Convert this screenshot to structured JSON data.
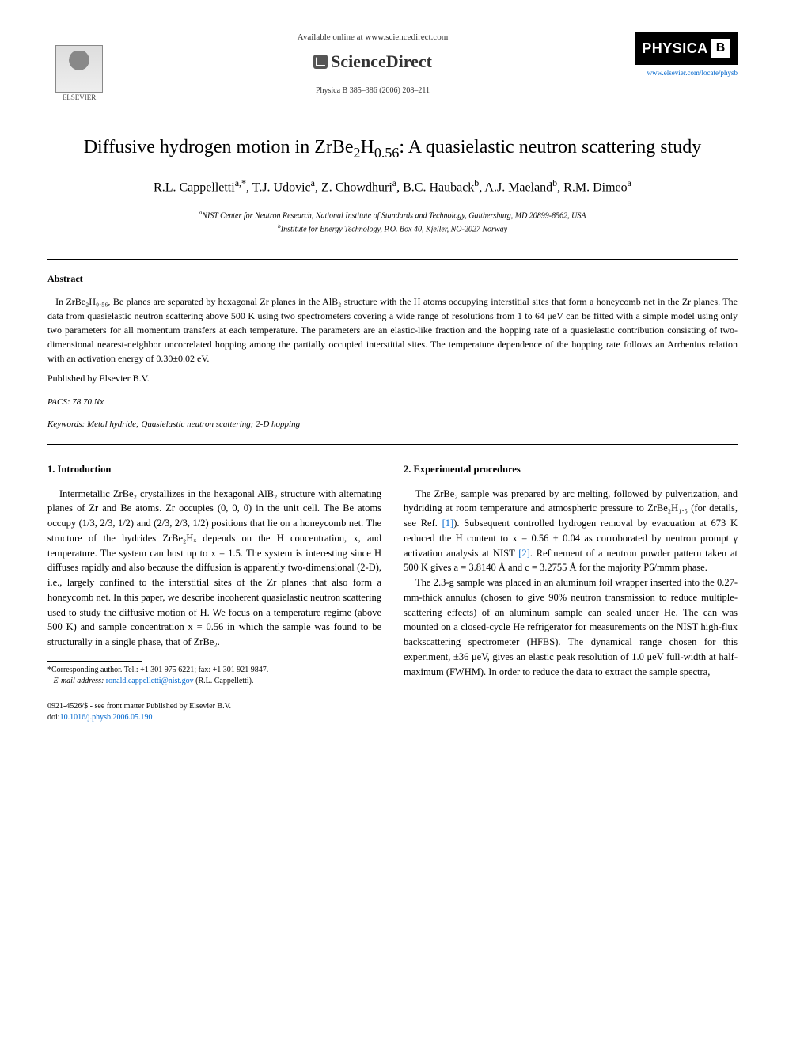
{
  "header": {
    "available_online": "Available online at www.sciencedirect.com",
    "sciencedirect": "ScienceDirect",
    "journal_ref": "Physica B 385–386 (2006) 208–211",
    "elsevier_label": "ELSEVIER",
    "physica_label": "PHYSICA",
    "physica_b": "B",
    "locate_link": "www.elsevier.com/locate/physb"
  },
  "title_line1": "Diffusive hydrogen motion in ZrBe",
  "title_sub1": "2",
  "title_mid": "H",
  "title_sub2": "0.56",
  "title_line2": ": A quasielastic neutron scattering study",
  "authors_html": "R.L. Cappelletti<sup>a,*</sup>, T.J. Udovic<sup>a</sup>, Z. Chowdhuri<sup>a</sup>, B.C. Hauback<sup>b</sup>, A.J. Maeland<sup>b</sup>, R.M. Dimeo<sup>a</sup>",
  "affiliations": {
    "a": "NIST Center for Neutron Research, National Institute of Standards and Technology, Gaithersburg, MD 20899-8562, USA",
    "b": "Institute for Energy Technology, P.O. Box 40, Kjeller, NO-2027 Norway"
  },
  "abstract": {
    "heading": "Abstract",
    "text": "In ZrBe₂H₀.₅₆, Be planes are separated by hexagonal Zr planes in the AlB₂ structure with the H atoms occupying interstitial sites that form a honeycomb net in the Zr planes. The data from quasielastic neutron scattering above 500 K using two spectrometers covering a wide range of resolutions from 1 to 64 μeV can be fitted with a simple model using only two parameters for all momentum transfers at each temperature. The parameters are an elastic-like fraction and the hopping rate of a quasielastic contribution consisting of two-dimensional nearest-neighbor uncorrelated hopping among the partially occupied interstitial sites. The temperature dependence of the hopping rate follows an Arrhenius relation with an activation energy of 0.30±0.02 eV.",
    "published": "Published by Elsevier B.V."
  },
  "pacs": {
    "label": "PACS:",
    "value": "78.70.Nx"
  },
  "keywords": {
    "label": "Keywords:",
    "value": "Metal hydride; Quasielastic neutron scattering; 2-D hopping"
  },
  "section1": {
    "heading": "1. Introduction",
    "p1": "Intermetallic ZrBe₂ crystallizes in the hexagonal AlB₂ structure with alternating planes of Zr and Be atoms. Zr occupies (0, 0, 0) in the unit cell. The Be atoms occupy (1/3, 2/3, 1/2) and (2/3, 2/3, 1/2) positions that lie on a honeycomb net. The structure of the hydrides ZrBe₂Hₓ depends on the H concentration, x, and temperature. The system can host up to x = 1.5. The system is interesting since H diffuses rapidly and also because the diffusion is apparently two-dimensional (2-D), i.e., largely confined to the interstitial sites of the Zr planes that also form a honeycomb net. In this paper, we describe incoherent quasielastic neutron scattering used to study the diffusive motion of H. We focus on a temperature regime (above 500 K) and sample concentration x = 0.56 in which the sample was found to be structurally in a single phase, that of ZrBe₂."
  },
  "section2": {
    "heading": "2. Experimental procedures",
    "p1": "The ZrBe₂ sample was prepared by arc melting, followed by pulverization, and hydriding at room temperature and atmospheric pressure to ZrBe₂H₁.₅ (for details, see Ref. [1]). Subsequent controlled hydrogen removal by evacuation at 673 K reduced the H content to x = 0.56 ± 0.04 as corroborated by neutron prompt γ activation analysis at NIST [2]. Refinement of a neutron powder pattern taken at 500 K gives a = 3.8140 Å and c = 3.2755 Å for the majority P6/mmm phase.",
    "p2": "The 2.3-g sample was placed in an aluminum foil wrapper inserted into the 0.27-mm-thick annulus (chosen to give 90% neutron transmission to reduce multiple-scattering effects) of an aluminum sample can sealed under He. The can was mounted on a closed-cycle He refrigerator for measurements on the NIST high-flux backscattering spectrometer (HFBS). The dynamical range chosen for this experiment, ±36 μeV, gives an elastic peak resolution of 1.0 μeV full-width at half-maximum (FWHM). In order to reduce the data to extract the sample spectra,"
  },
  "footnote": {
    "corresponding": "*Corresponding author. Tel.: +1 301 975 6221; fax: +1 301 921 9847.",
    "email_label": "E-mail address:",
    "email": "ronald.cappelletti@nist.gov",
    "email_name": "(R.L. Cappelletti)."
  },
  "footer": {
    "copyright": "0921-4526/$ - see front matter Published by Elsevier B.V.",
    "doi_label": "doi:",
    "doi": "10.1016/j.physb.2006.05.190"
  }
}
